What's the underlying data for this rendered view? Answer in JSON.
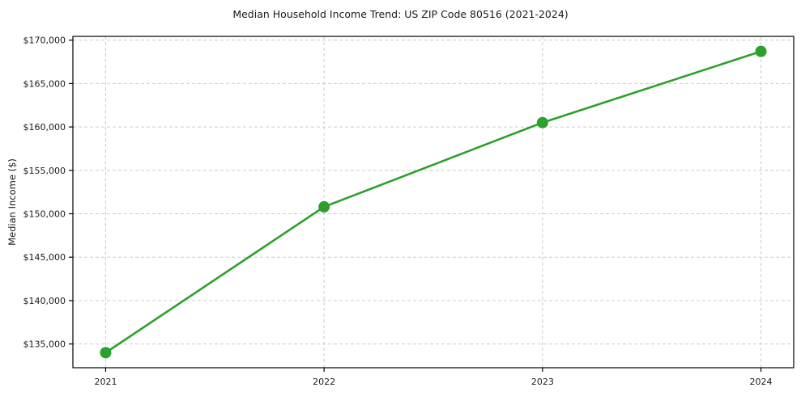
{
  "chart_data": {
    "type": "line",
    "title": "Median Household Income Trend: US ZIP Code 80516 (2021-2024)",
    "xlabel": "",
    "ylabel": "Median Income ($)",
    "x": [
      2021,
      2022,
      2023,
      2024
    ],
    "x_tick_labels": [
      "2021",
      "2022",
      "2023",
      "2024"
    ],
    "values": [
      134000,
      150800,
      160500,
      168700
    ],
    "series_name": "Median Household Income",
    "y_ticks": [
      135000,
      140000,
      145000,
      150000,
      155000,
      160000,
      165000,
      170000
    ],
    "y_tick_labels": [
      "$135,000",
      "$140,000",
      "$145,000",
      "$150,000",
      "$155,000",
      "$160,000",
      "$165,000",
      "$170,000"
    ],
    "xlim": [
      2020.85,
      2024.15
    ],
    "ylim": [
      132265,
      170435
    ],
    "grid": true,
    "grid_style": "dashed",
    "legend_position": "none",
    "line_color": "#2ca02c",
    "marker": "circle",
    "marker_size": 7,
    "line_width": 2.6,
    "axis_color": "#000000",
    "grid_color": "#cccccc",
    "text_color": "#1a1a1a",
    "background_color": "#ffffff"
  }
}
